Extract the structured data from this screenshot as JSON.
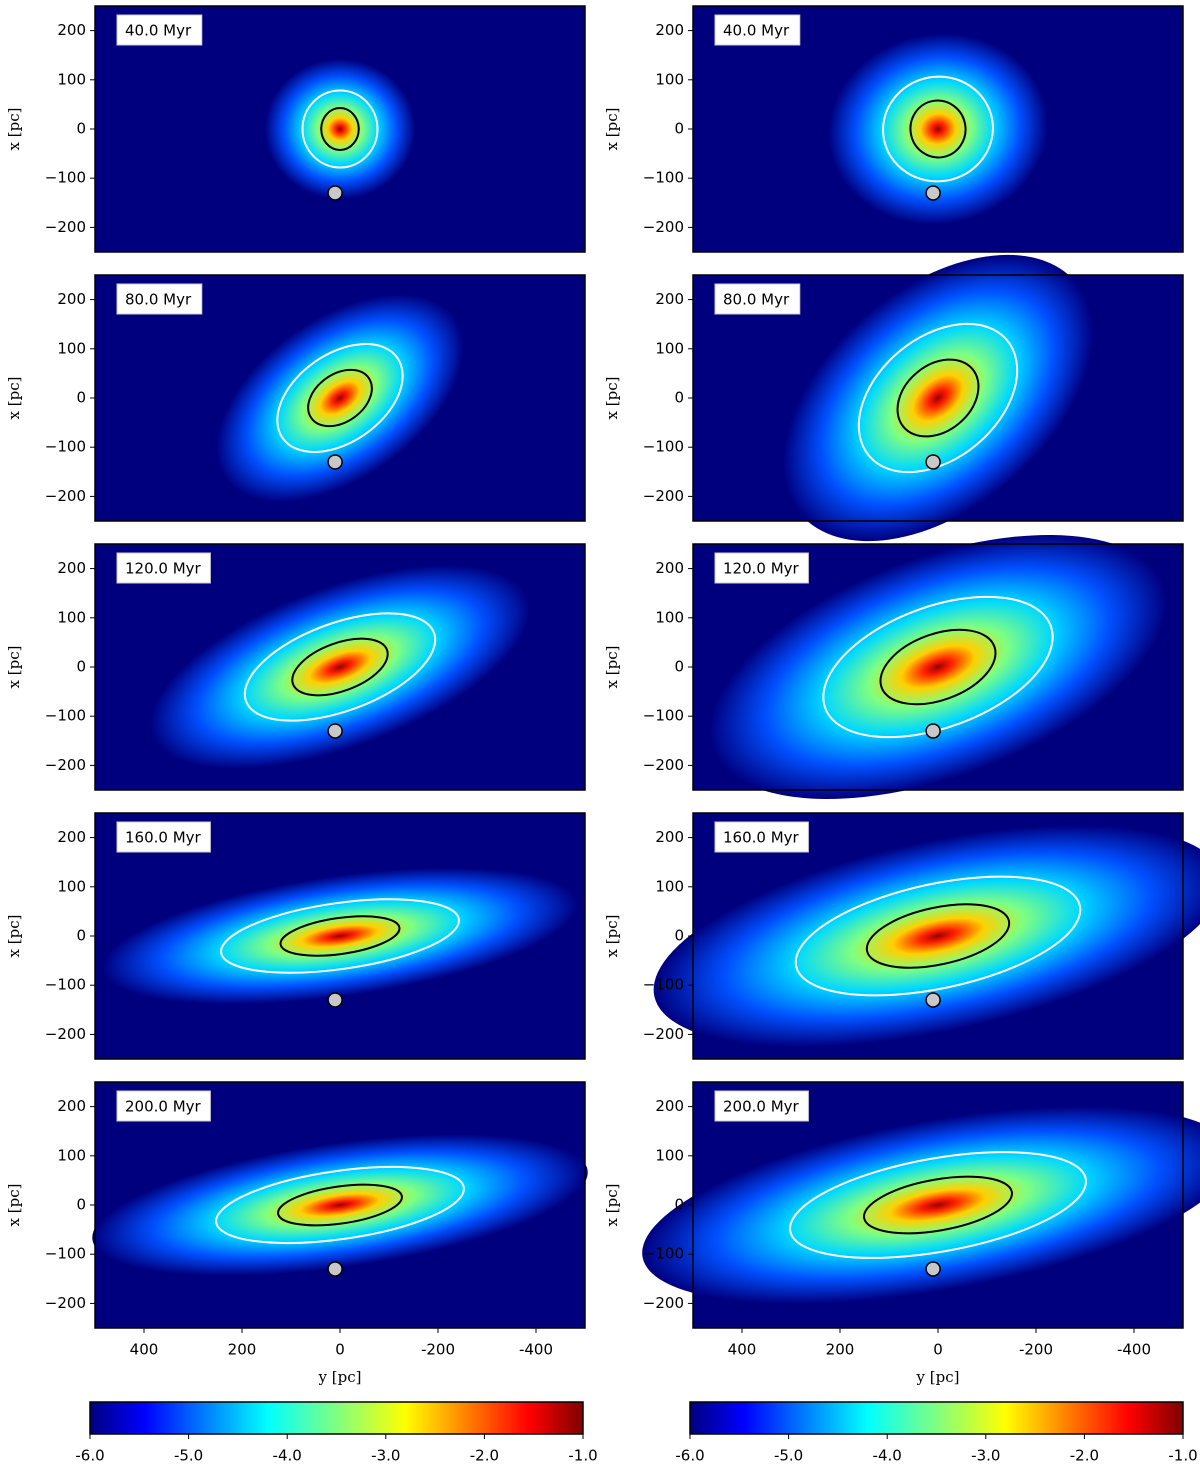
{
  "chart_data": [
    {
      "type": "heatmap",
      "annotation": "40.0 Myr",
      "ylabel": "x [pc]",
      "xlim": [
        500,
        -500
      ],
      "ylim": [
        -250,
        250
      ],
      "yticks": [
        {
          "value": 200,
          "label": "200"
        },
        {
          "value": 100,
          "label": "100"
        },
        {
          "value": 0,
          "label": "0"
        },
        {
          "value": -100,
          "label": "−100"
        },
        {
          "value": -200,
          "label": "−200"
        }
      ],
      "points": {
        "x": [
          10
        ],
        "y": [
          -130
        ],
        "color": "#c8c8c8"
      }
    },
    {
      "type": "heatmap",
      "annotation": "40.0 Myr",
      "ylabel": "x [pc]",
      "xlim": [
        500,
        -500
      ],
      "ylim": [
        -250,
        250
      ],
      "yticks": [
        {
          "value": 200,
          "label": "200"
        },
        {
          "value": 100,
          "label": "100"
        },
        {
          "value": 0,
          "label": "0"
        },
        {
          "value": -100,
          "label": "−100"
        },
        {
          "value": -200,
          "label": "−200"
        }
      ],
      "points": {
        "x": [
          10
        ],
        "y": [
          -130
        ],
        "color": "#c8c8c8"
      }
    },
    {
      "type": "heatmap",
      "annotation": "80.0 Myr",
      "ylabel": "x [pc]",
      "xlim": [
        500,
        -500
      ],
      "ylim": [
        -250,
        250
      ],
      "yticks": [
        {
          "value": 200,
          "label": "200"
        },
        {
          "value": 100,
          "label": "100"
        },
        {
          "value": 0,
          "label": "0"
        },
        {
          "value": -100,
          "label": "−100"
        },
        {
          "value": -200,
          "label": "−200"
        }
      ],
      "points": {
        "x": [
          10
        ],
        "y": [
          -130
        ],
        "color": "#c8c8c8"
      }
    },
    {
      "type": "heatmap",
      "annotation": "80.0 Myr",
      "ylabel": "x [pc]",
      "xlim": [
        500,
        -500
      ],
      "ylim": [
        -250,
        250
      ],
      "yticks": [
        {
          "value": 200,
          "label": "200"
        },
        {
          "value": 100,
          "label": "100"
        },
        {
          "value": 0,
          "label": "0"
        },
        {
          "value": -100,
          "label": "−100"
        },
        {
          "value": -200,
          "label": "−200"
        }
      ],
      "points": {
        "x": [
          10
        ],
        "y": [
          -130
        ],
        "color": "#c8c8c8"
      }
    },
    {
      "type": "heatmap",
      "annotation": "120.0 Myr",
      "ylabel": "x [pc]",
      "xlim": [
        500,
        -500
      ],
      "ylim": [
        -250,
        250
      ],
      "yticks": [
        {
          "value": 200,
          "label": "200"
        },
        {
          "value": 100,
          "label": "100"
        },
        {
          "value": 0,
          "label": "0"
        },
        {
          "value": -100,
          "label": "−100"
        },
        {
          "value": -200,
          "label": "−200"
        }
      ],
      "points": {
        "x": [
          10
        ],
        "y": [
          -130
        ],
        "color": "#c8c8c8"
      }
    },
    {
      "type": "heatmap",
      "annotation": "120.0 Myr",
      "ylabel": "x [pc]",
      "xlim": [
        500,
        -500
      ],
      "ylim": [
        -250,
        250
      ],
      "yticks": [
        {
          "value": 200,
          "label": "200"
        },
        {
          "value": 100,
          "label": "100"
        },
        {
          "value": 0,
          "label": "0"
        },
        {
          "value": -100,
          "label": "−100"
        },
        {
          "value": -200,
          "label": "−200"
        }
      ],
      "points": {
        "x": [
          10
        ],
        "y": [
          -130
        ],
        "color": "#c8c8c8"
      }
    },
    {
      "type": "heatmap",
      "annotation": "160.0 Myr",
      "ylabel": "x [pc]",
      "xlim": [
        500,
        -500
      ],
      "ylim": [
        -250,
        250
      ],
      "yticks": [
        {
          "value": 200,
          "label": "200"
        },
        {
          "value": 100,
          "label": "100"
        },
        {
          "value": 0,
          "label": "0"
        },
        {
          "value": -100,
          "label": "−100"
        },
        {
          "value": -200,
          "label": "−200"
        }
      ],
      "points": {
        "x": [
          10
        ],
        "y": [
          -130
        ],
        "color": "#c8c8c8"
      }
    },
    {
      "type": "heatmap",
      "annotation": "160.0 Myr",
      "ylabel": "x [pc]",
      "xlim": [
        500,
        -500
      ],
      "ylim": [
        -250,
        250
      ],
      "yticks": [
        {
          "value": 200,
          "label": "200"
        },
        {
          "value": 100,
          "label": "100"
        },
        {
          "value": 0,
          "label": "0"
        },
        {
          "value": -100,
          "label": "−100"
        },
        {
          "value": -200,
          "label": "−200"
        }
      ],
      "points": {
        "x": [
          10
        ],
        "y": [
          -130
        ],
        "color": "#c8c8c8"
      }
    },
    {
      "type": "heatmap",
      "annotation": "200.0 Myr",
      "ylabel": "x [pc]",
      "xlabel": "y [pc]",
      "xlim": [
        500,
        -500
      ],
      "ylim": [
        -250,
        250
      ],
      "xticks": [
        400,
        200,
        0,
        -200,
        -400
      ],
      "yticks": [
        {
          "value": 200,
          "label": "200"
        },
        {
          "value": 100,
          "label": "100"
        },
        {
          "value": 0,
          "label": "0"
        },
        {
          "value": -100,
          "label": "−100"
        },
        {
          "value": -200,
          "label": "−200"
        }
      ],
      "points": {
        "x": [
          10
        ],
        "y": [
          -130
        ],
        "color": "#c8c8c8"
      }
    },
    {
      "type": "heatmap",
      "annotation": "200.0 Myr",
      "ylabel": "x [pc]",
      "xlabel": "y [pc]",
      "xlim": [
        500,
        -500
      ],
      "ylim": [
        -250,
        250
      ],
      "xticks": [
        400,
        200,
        0,
        -200,
        -400
      ],
      "yticks": [
        {
          "value": 200,
          "label": "200"
        },
        {
          "value": 100,
          "label": "100"
        },
        {
          "value": 0,
          "label": "0"
        },
        {
          "value": -100,
          "label": "−100"
        },
        {
          "value": -200,
          "label": "−200"
        }
      ],
      "points": {
        "x": [
          10
        ],
        "y": [
          -130
        ],
        "color": "#c8c8c8"
      }
    },
    {
      "type": "colorbar",
      "xlim": [
        -6,
        -1
      ],
      "xticks": [
        {
          "value": -6,
          "label": "-6.0"
        },
        {
          "value": -5,
          "label": "-5.0"
        },
        {
          "value": -4,
          "label": "-4.0"
        },
        {
          "value": -3,
          "label": "-3.0"
        },
        {
          "value": -2,
          "label": "-2.0"
        },
        {
          "value": -1,
          "label": "-1.0"
        }
      ]
    },
    {
      "type": "colorbar",
      "xlim": [
        -6,
        -1
      ],
      "xticks": [
        {
          "value": -6,
          "label": "-6.0"
        },
        {
          "value": -5,
          "label": "-5.0"
        },
        {
          "value": -4,
          "label": "-4.0"
        },
        {
          "value": -3,
          "label": "-3.0"
        },
        {
          "value": -2,
          "label": "-2.0"
        },
        {
          "value": -1,
          "label": "-1.0"
        }
      ]
    }
  ]
}
